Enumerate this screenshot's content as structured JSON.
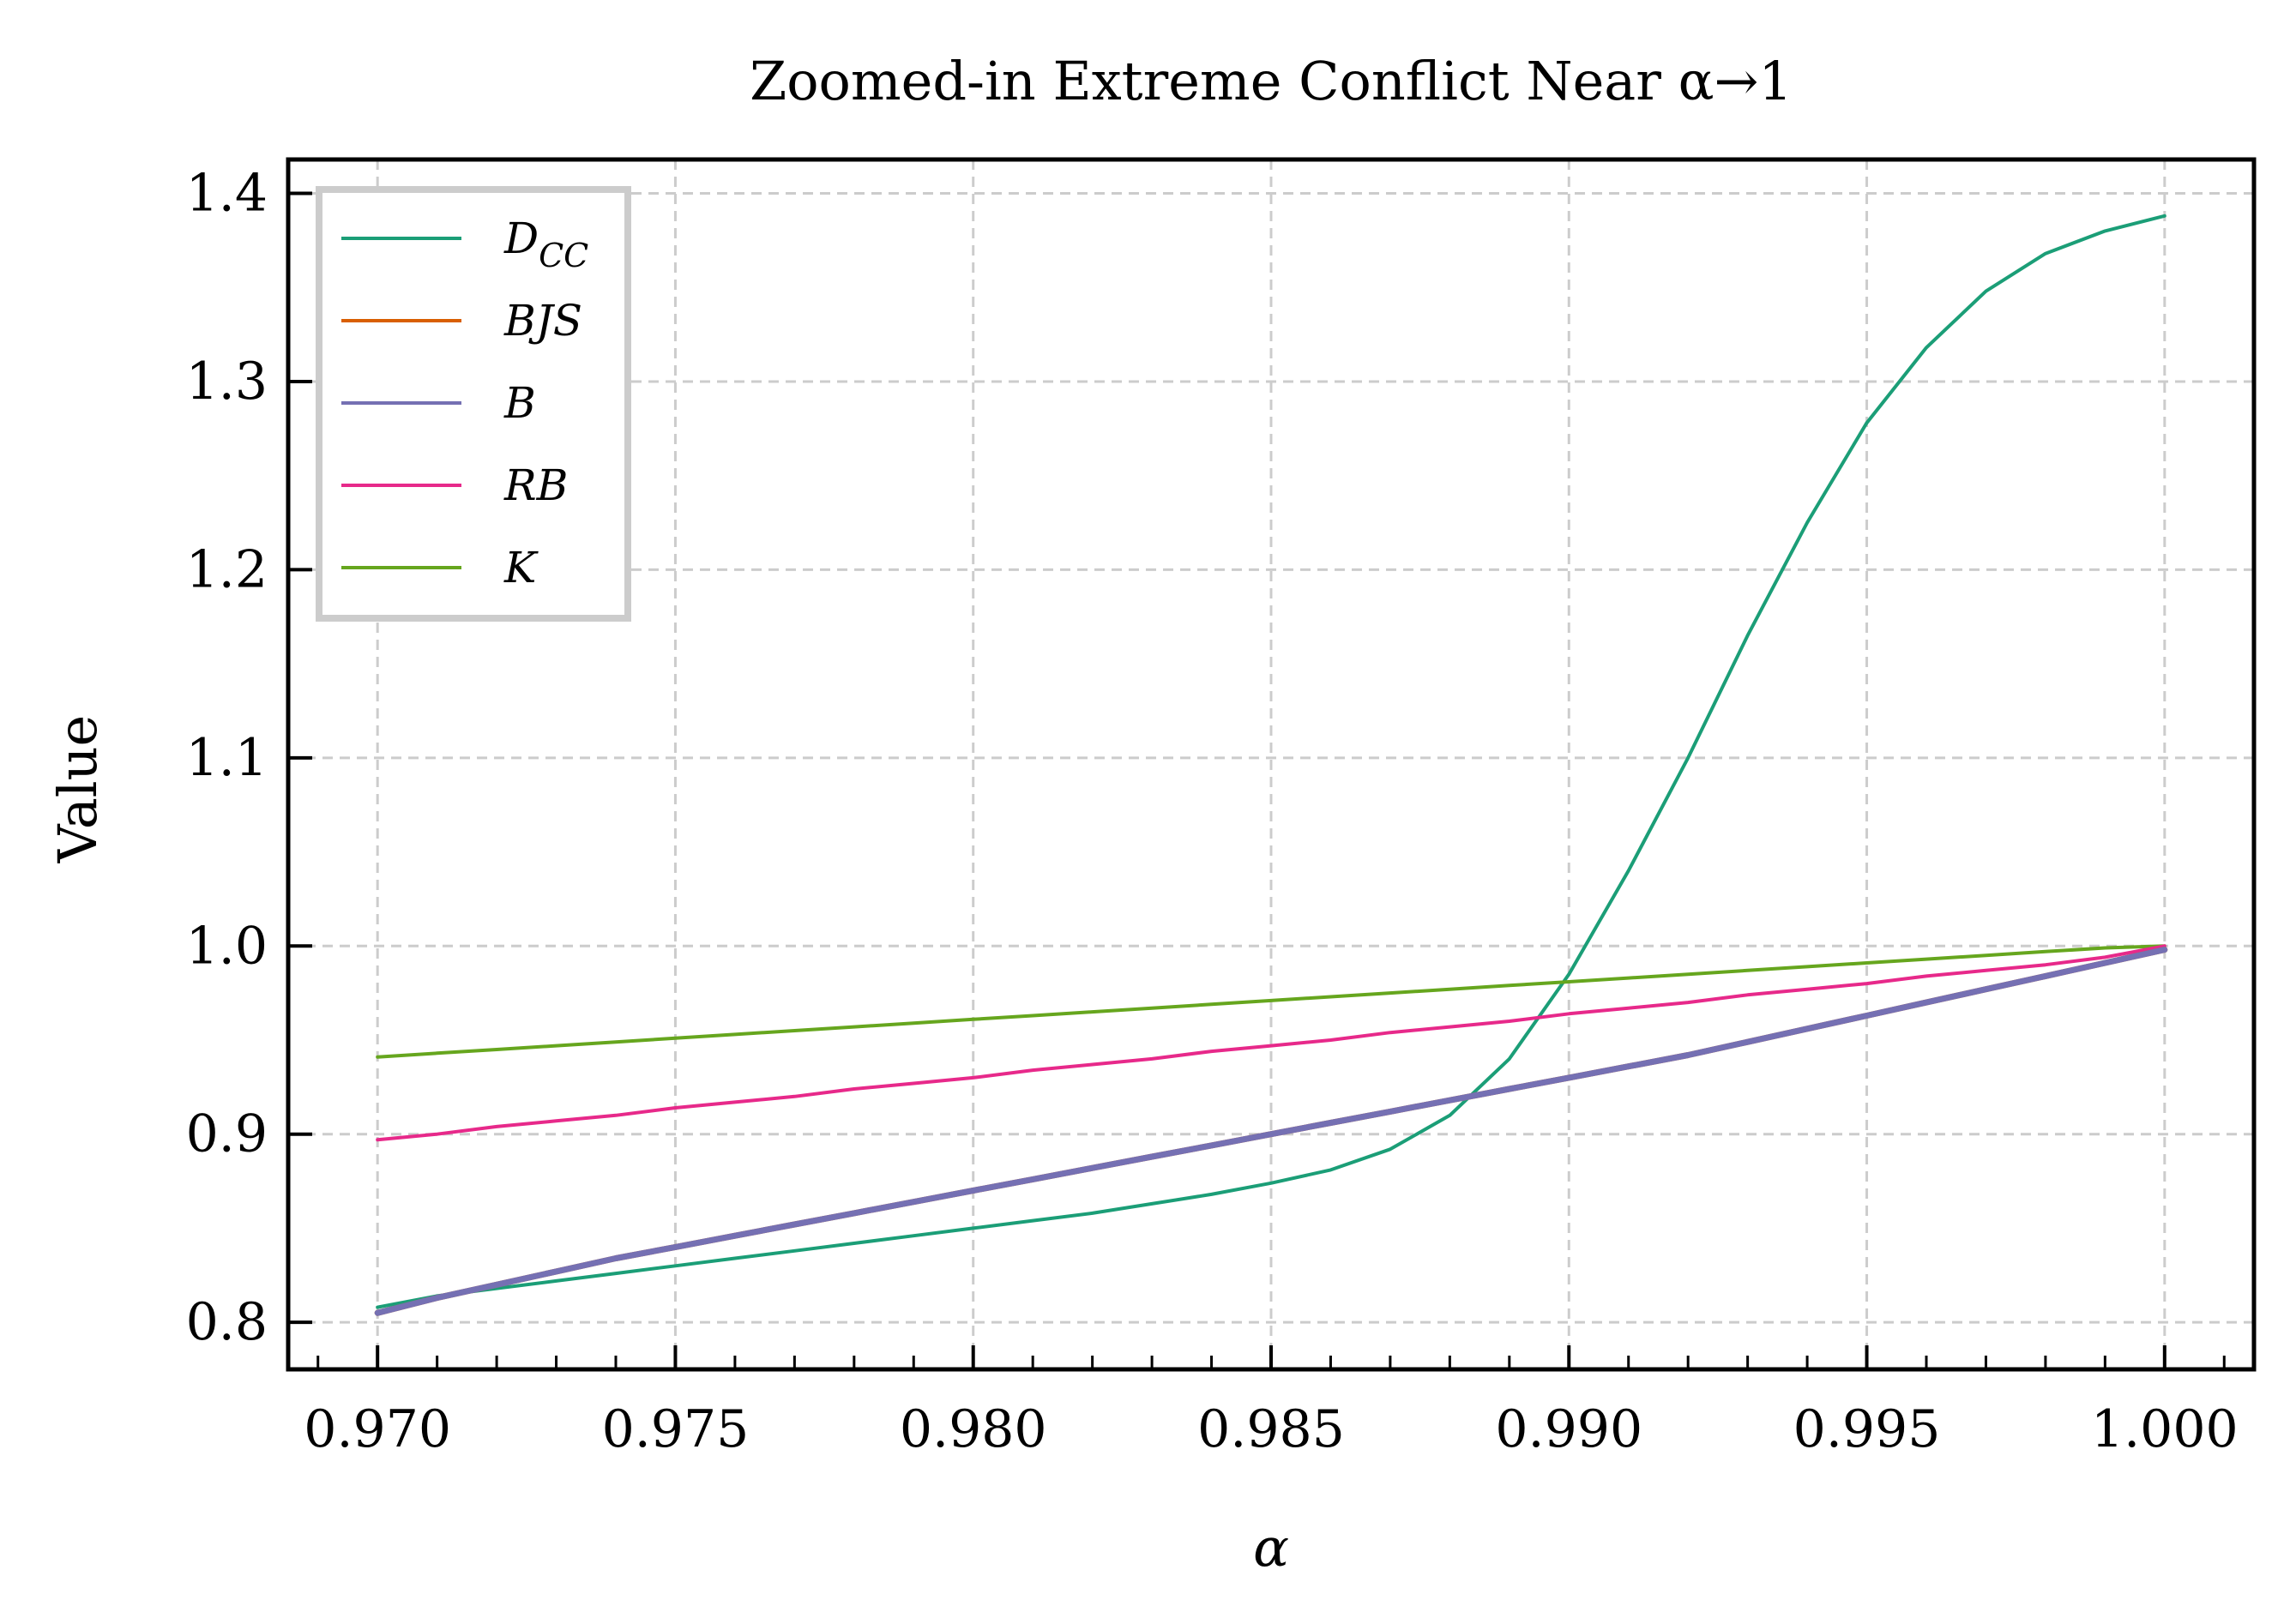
{
  "chart_data": {
    "type": "line",
    "title": "Zoomed-in Extreme Conflict Near α→1",
    "xlabel": "α",
    "ylabel": "Value",
    "xlim": [
      0.9685,
      1.0015
    ],
    "ylim": [
      0.775,
      1.418
    ],
    "grid": true,
    "legend_position": "top-left",
    "x_ticks": [
      0.97,
      0.975,
      0.98,
      0.985,
      0.99,
      0.995,
      1.0
    ],
    "x_tick_labels": [
      "0.970",
      "0.975",
      "0.980",
      "0.985",
      "0.990",
      "0.995",
      "1.000"
    ],
    "y_ticks": [
      0.8,
      0.9,
      1.0,
      1.1,
      1.2,
      1.3,
      1.4
    ],
    "y_tick_labels": [
      "0.8",
      "0.9",
      "1.0",
      "1.1",
      "1.2",
      "1.3",
      "1.4"
    ],
    "x": [
      0.97,
      0.971,
      0.972,
      0.973,
      0.974,
      0.975,
      0.976,
      0.977,
      0.978,
      0.979,
      0.98,
      0.981,
      0.982,
      0.983,
      0.984,
      0.985,
      0.986,
      0.987,
      0.988,
      0.989,
      0.99,
      0.991,
      0.992,
      0.993,
      0.994,
      0.995,
      0.996,
      0.997,
      0.998,
      0.999,
      1.0
    ],
    "series": [
      {
        "name": "D",
        "name_sub": "CC",
        "color": "#1b9e77",
        "width": 4,
        "values": [
          0.808,
          0.814,
          0.818,
          0.822,
          0.826,
          0.83,
          0.834,
          0.838,
          0.842,
          0.846,
          0.85,
          0.854,
          0.858,
          0.863,
          0.868,
          0.874,
          0.881,
          0.892,
          0.91,
          0.94,
          0.985,
          1.04,
          1.1,
          1.165,
          1.225,
          1.278,
          1.318,
          1.348,
          1.368,
          1.38,
          1.388
        ]
      },
      {
        "name": "BJS",
        "name_sub": "",
        "color": "#d95f02",
        "width": 7,
        "values": [
          0.805,
          0.813,
          0.82,
          0.827,
          0.834,
          0.84,
          0.846,
          0.852,
          0.858,
          0.864,
          0.87,
          0.876,
          0.882,
          0.888,
          0.894,
          0.9,
          0.906,
          0.912,
          0.918,
          0.924,
          0.93,
          0.936,
          0.942,
          0.949,
          0.956,
          0.963,
          0.97,
          0.977,
          0.984,
          0.991,
          0.998
        ]
      },
      {
        "name": "B",
        "name_sub": "",
        "color": "#7570b3",
        "width": 7,
        "values": [
          0.805,
          0.813,
          0.82,
          0.827,
          0.834,
          0.84,
          0.846,
          0.852,
          0.858,
          0.864,
          0.87,
          0.876,
          0.882,
          0.888,
          0.894,
          0.9,
          0.906,
          0.912,
          0.918,
          0.924,
          0.93,
          0.936,
          0.942,
          0.949,
          0.956,
          0.963,
          0.97,
          0.977,
          0.984,
          0.991,
          0.998
        ]
      },
      {
        "name": "RB",
        "name_sub": "",
        "color": "#e7298a",
        "width": 4,
        "values": [
          0.897,
          0.9,
          0.904,
          0.907,
          0.91,
          0.914,
          0.917,
          0.92,
          0.924,
          0.927,
          0.93,
          0.934,
          0.937,
          0.94,
          0.944,
          0.947,
          0.95,
          0.954,
          0.957,
          0.96,
          0.964,
          0.967,
          0.97,
          0.974,
          0.977,
          0.98,
          0.984,
          0.987,
          0.99,
          0.994,
          1.0
        ]
      },
      {
        "name": "K",
        "name_sub": "",
        "color": "#66a61e",
        "width": 4,
        "values": [
          0.941,
          0.943,
          0.945,
          0.947,
          0.949,
          0.951,
          0.953,
          0.955,
          0.957,
          0.959,
          0.961,
          0.963,
          0.965,
          0.967,
          0.969,
          0.971,
          0.973,
          0.975,
          0.977,
          0.979,
          0.981,
          0.983,
          0.985,
          0.987,
          0.989,
          0.991,
          0.993,
          0.995,
          0.997,
          0.999,
          1.0
        ]
      }
    ]
  }
}
